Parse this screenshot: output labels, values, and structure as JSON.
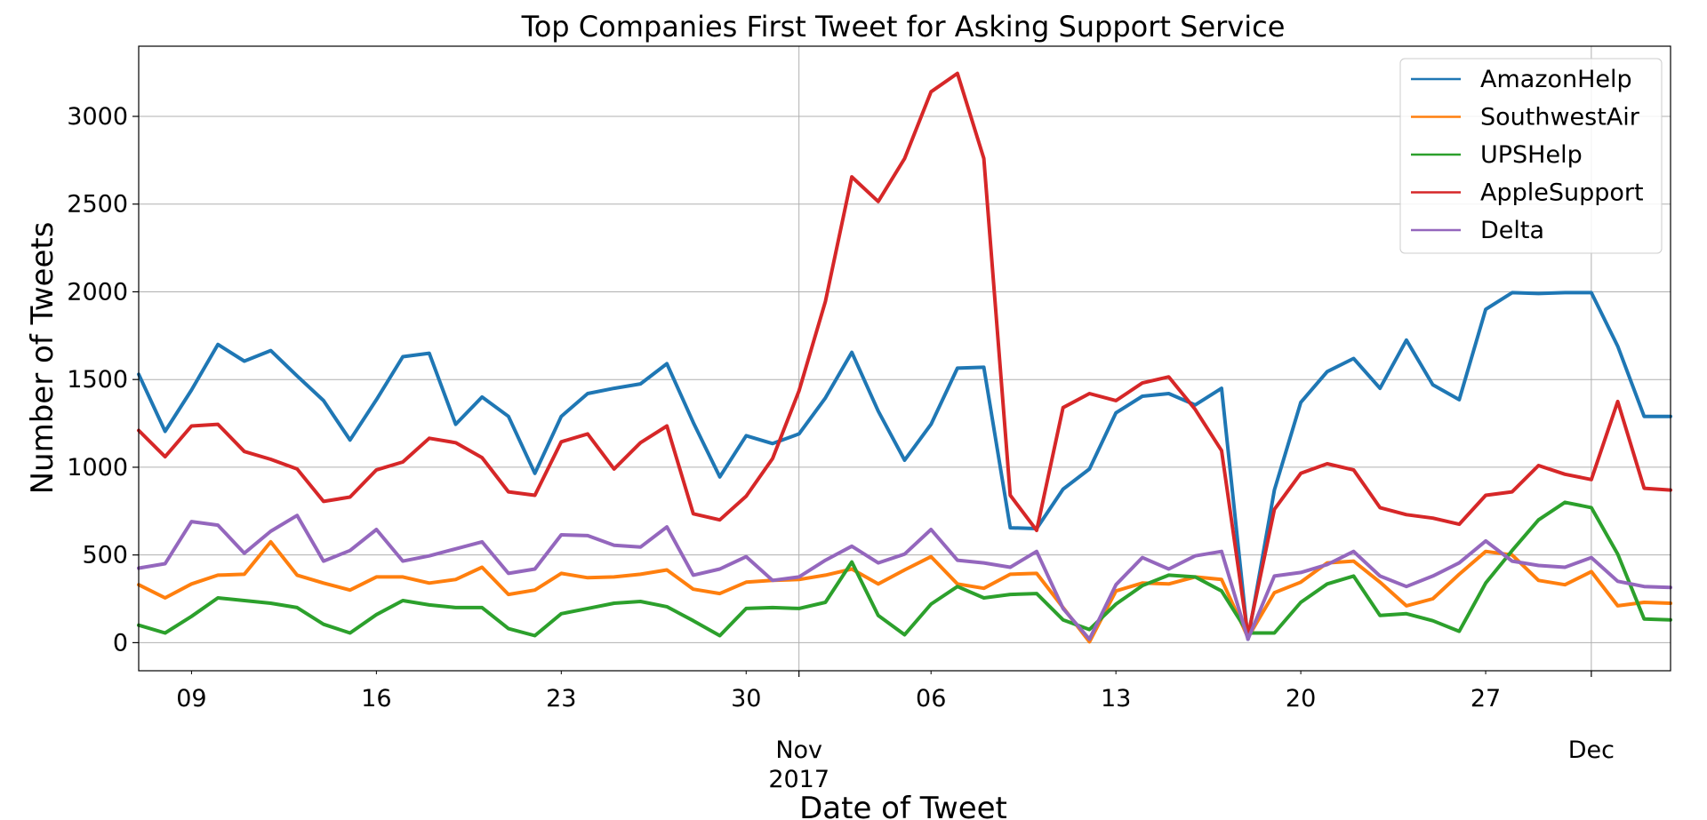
{
  "chart_data": {
    "type": "line",
    "title": "Top Companies First Tweet for Asking Support Service",
    "xlabel": "Date of Tweet",
    "ylabel": "Number of Tweets",
    "x_start": "2017-10-07",
    "x_end": "2017-12-04",
    "ylim": [
      -160,
      3400
    ],
    "grid": true,
    "legend_position": "top-right",
    "y_ticks": [
      {
        "value": 0,
        "label": "0"
      },
      {
        "value": 500,
        "label": "500"
      },
      {
        "value": 1000,
        "label": "1000"
      },
      {
        "value": 1500,
        "label": "1500"
      },
      {
        "value": 2000,
        "label": "2000"
      },
      {
        "value": 2500,
        "label": "2500"
      },
      {
        "value": 3000,
        "label": "3000"
      }
    ],
    "x_minor_ticks": [
      {
        "date": "2017-10-09",
        "label": "09"
      },
      {
        "date": "2017-10-16",
        "label": "16"
      },
      {
        "date": "2017-10-23",
        "label": "23"
      },
      {
        "date": "2017-10-30",
        "label": "30"
      },
      {
        "date": "2017-11-06",
        "label": "06"
      },
      {
        "date": "2017-11-13",
        "label": "13"
      },
      {
        "date": "2017-11-20",
        "label": "20"
      },
      {
        "date": "2017-11-27",
        "label": "27"
      }
    ],
    "x_major_ticks": [
      {
        "date": "2017-11-01",
        "label": "Nov",
        "sublabel": "2017"
      },
      {
        "date": "2017-12-01",
        "label": "Dec",
        "sublabel": ""
      }
    ],
    "x": [
      "2017-10-07",
      "2017-10-08",
      "2017-10-09",
      "2017-10-10",
      "2017-10-11",
      "2017-10-12",
      "2017-10-13",
      "2017-10-14",
      "2017-10-15",
      "2017-10-16",
      "2017-10-17",
      "2017-10-18",
      "2017-10-19",
      "2017-10-20",
      "2017-10-21",
      "2017-10-22",
      "2017-10-23",
      "2017-10-24",
      "2017-10-25",
      "2017-10-26",
      "2017-10-27",
      "2017-10-28",
      "2017-10-29",
      "2017-10-30",
      "2017-10-31",
      "2017-11-01",
      "2017-11-02",
      "2017-11-03",
      "2017-11-04",
      "2017-11-05",
      "2017-11-06",
      "2017-11-07",
      "2017-11-08",
      "2017-11-09",
      "2017-11-10",
      "2017-11-11",
      "2017-11-12",
      "2017-11-13",
      "2017-11-14",
      "2017-11-15",
      "2017-11-16",
      "2017-11-17",
      "2017-11-18",
      "2017-11-19",
      "2017-11-20",
      "2017-11-21",
      "2017-11-22",
      "2017-11-23",
      "2017-11-24",
      "2017-11-25",
      "2017-11-26",
      "2017-11-27",
      "2017-11-28",
      "2017-11-29",
      "2017-11-30",
      "2017-12-01",
      "2017-12-02",
      "2017-12-03",
      "2017-12-04"
    ],
    "series": [
      {
        "name": "AmazonHelp",
        "color": "#1f77b4",
        "values": [
          1530,
          1205,
          1440,
          1700,
          1605,
          1665,
          1520,
          1380,
          1155,
          1385,
          1630,
          1650,
          1245,
          1400,
          1290,
          965,
          1290,
          1420,
          1450,
          1475,
          1590,
          1255,
          945,
          1180,
          1135,
          1190,
          1395,
          1655,
          1320,
          1040,
          1245,
          1565,
          1570,
          655,
          650,
          875,
          990,
          1310,
          1405,
          1420,
          1355,
          1450,
          20,
          870,
          1370,
          1545,
          1620,
          1450,
          1725,
          1470,
          1385,
          1900,
          1995,
          1990,
          1995,
          1995,
          1690,
          1290,
          1290
        ]
      },
      {
        "name": "SouthwestAir",
        "color": "#ff7f0e",
        "values": [
          330,
          255,
          335,
          385,
          390,
          575,
          385,
          340,
          300,
          375,
          375,
          340,
          360,
          430,
          275,
          300,
          395,
          370,
          375,
          390,
          415,
          305,
          280,
          345,
          355,
          360,
          385,
          420,
          335,
          415,
          490,
          335,
          310,
          390,
          395,
          200,
          5,
          295,
          340,
          335,
          375,
          360,
          30,
          285,
          345,
          455,
          465,
          345,
          210,
          250,
          390,
          520,
          500,
          355,
          330,
          405,
          210,
          230,
          225
        ]
      },
      {
        "name": "UPSHelp",
        "color": "#2ca02c",
        "values": [
          100,
          55,
          150,
          255,
          240,
          225,
          200,
          105,
          55,
          160,
          240,
          215,
          200,
          200,
          80,
          40,
          165,
          195,
          225,
          235,
          205,
          125,
          40,
          195,
          200,
          195,
          230,
          460,
          155,
          45,
          220,
          320,
          255,
          275,
          280,
          130,
          75,
          220,
          325,
          385,
          375,
          295,
          55,
          55,
          230,
          335,
          380,
          155,
          165,
          125,
          65,
          340,
          525,
          700,
          800,
          770,
          505,
          135,
          130
        ]
      },
      {
        "name": "AppleSupport",
        "color": "#d62728",
        "values": [
          1210,
          1060,
          1235,
          1245,
          1090,
          1045,
          990,
          805,
          830,
          985,
          1030,
          1165,
          1140,
          1055,
          860,
          840,
          1145,
          1190,
          990,
          1140,
          1235,
          735,
          700,
          835,
          1050,
          1435,
          1945,
          2655,
          2515,
          2760,
          3140,
          3245,
          2760,
          840,
          640,
          1340,
          1420,
          1380,
          1480,
          1515,
          1330,
          1095,
          40,
          760,
          965,
          1020,
          985,
          770,
          730,
          710,
          675,
          840,
          860,
          1010,
          960,
          930,
          1375,
          880,
          870
        ]
      },
      {
        "name": "Delta",
        "color": "#9467bd",
        "values": [
          425,
          450,
          690,
          670,
          510,
          635,
          725,
          465,
          525,
          645,
          465,
          495,
          535,
          575,
          395,
          420,
          615,
          610,
          555,
          545,
          660,
          385,
          420,
          490,
          355,
          375,
          470,
          550,
          455,
          505,
          645,
          470,
          455,
          430,
          520,
          195,
          20,
          330,
          485,
          420,
          495,
          520,
          20,
          380,
          400,
          445,
          520,
          380,
          320,
          380,
          455,
          580,
          465,
          440,
          430,
          485,
          350,
          320,
          315
        ]
      }
    ]
  }
}
